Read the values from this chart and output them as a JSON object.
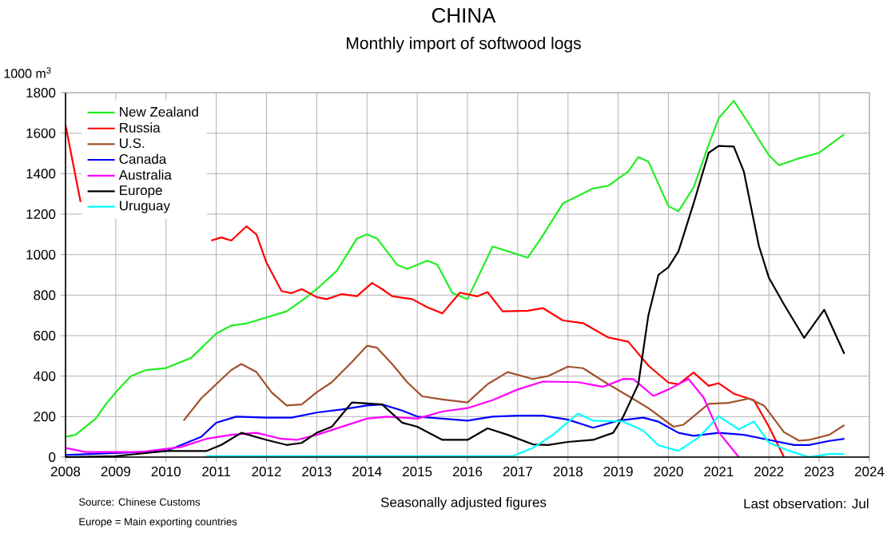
{
  "chart_data": {
    "type": "line",
    "title": "CHINA",
    "subtitle": "Monthly import of softwood logs",
    "ylabel": "1000 m$^{3}$",
    "annotations": [
      "Source: Chinese Customs",
      "Europe = Main exporting countries",
      "Seasonally adjusted figures",
      "Last observation: Jul"
    ],
    "xlim": [
      2008,
      2024
    ],
    "xticks": [
      2008,
      2009,
      2010,
      2011,
      2012,
      2013,
      2014,
      2015,
      2016,
      2017,
      2018,
      2019,
      2020,
      2021,
      2022,
      2023,
      2024
    ],
    "ylim": [
      0,
      1800
    ],
    "yticks": [
      0,
      200,
      400,
      600,
      800,
      1000,
      1200,
      1400,
      1600,
      1800
    ],
    "grid": true,
    "legend": "top left",
    "marker": "none",
    "line_style": "solid",
    "series": [
      {
        "name": "New Zealand",
        "color": "#22ee22",
        "x": [
          2008,
          2008.2,
          2008.6,
          2008.8,
          2009,
          2009.3,
          2009.6,
          2010,
          2010.5,
          2011,
          2011.3,
          2011.6,
          2012,
          2012.4,
          2012.8,
          2013,
          2013.4,
          2013.8,
          2014,
          2014.2,
          2014.6,
          2014.8,
          2015.2,
          2015.4,
          2015.7,
          2016,
          2016.5,
          2016.8,
          2017.2,
          2017.5,
          2017.9,
          2018.5,
          2018.8,
          2019.2,
          2019.4,
          2019.6,
          2020,
          2020.2,
          2020.5,
          2020.8,
          2021,
          2021.3,
          2021.6,
          2022,
          2022.2,
          2022.6,
          2023,
          2023.5
        ],
        "values": [
          100,
          110,
          190,
          260,
          320,
          400,
          430,
          440,
          490,
          610,
          650,
          660,
          690,
          720,
          790,
          830,
          920,
          1080,
          1100,
          1080,
          950,
          930,
          970,
          950,
          810,
          780,
          1040,
          1017,
          985,
          1095,
          1253,
          1327,
          1340,
          1411,
          1482,
          1460,
          1240,
          1214,
          1332,
          1542,
          1674,
          1760,
          1647,
          1490,
          1442,
          1476,
          1503,
          1595
        ]
      },
      {
        "name": "Russia",
        "color": "#ff0000",
        "x": [
          2008,
          2008.3,
          2009,
          2010.9,
          2011.1,
          2011.3,
          2011.6,
          2011.8,
          2012,
          2012.3,
          2012.5,
          2012.7,
          2013,
          2013.2,
          2013.5,
          2013.8,
          2014.1,
          2014.3,
          2014.5,
          2014.9,
          2015.2,
          2015.5,
          2015.85,
          2016.2,
          2016.4,
          2016.7,
          2017.2,
          2017.5,
          2017.9,
          2018.3,
          2018.8,
          2019.2,
          2019.6,
          2020,
          2020.2,
          2020.5,
          2020.8,
          2021,
          2021.3,
          2021.7,
          2022,
          2022.3
        ],
        "values": [
          1640,
          1260,
          null,
          1070,
          1085,
          1070,
          1140,
          1100,
          960,
          820,
          810,
          830,
          790,
          780,
          805,
          795,
          860,
          830,
          795,
          780,
          740,
          710,
          812,
          794,
          815,
          720,
          723,
          736,
          675,
          662,
          591,
          570,
          452,
          368,
          360,
          418,
          352,
          365,
          313,
          281,
          150,
          0
        ]
      },
      {
        "name": "U.S.",
        "color": "#a0522d",
        "x": [
          2010.35,
          2010.7,
          2011,
          2011.3,
          2011.5,
          2011.8,
          2012.1,
          2012.4,
          2012.7,
          2013,
          2013.3,
          2013.7,
          2014,
          2014.2,
          2014.5,
          2014.8,
          2015.1,
          2015.5,
          2016,
          2016.4,
          2016.8,
          2017.3,
          2017.6,
          2018,
          2018.3,
          2018.8,
          2019.2,
          2019.6,
          2020.1,
          2020.3,
          2020.8,
          2021.2,
          2021.6,
          2021.9,
          2022.3,
          2022.6,
          2022.8,
          2023.2,
          2023.5
        ],
        "values": [
          180,
          290,
          360,
          430,
          460,
          420,
          320,
          255,
          260,
          320,
          370,
          470,
          550,
          540,
          460,
          370,
          300,
          285,
          270,
          360,
          420,
          386,
          400,
          447,
          439,
          360,
          302,
          242,
          150,
          160,
          263,
          268,
          289,
          255,
          123,
          81,
          85,
          110,
          158
        ]
      },
      {
        "name": "Canada",
        "color": "#0000ff",
        "x": [
          2008,
          2009,
          2010,
          2010.7,
          2011,
          2011.4,
          2012,
          2012.5,
          2013,
          2013.5,
          2014,
          2014.3,
          2014.7,
          2015,
          2015.5,
          2016,
          2016.5,
          2017,
          2017.5,
          2018,
          2018.5,
          2019,
          2019.5,
          2019.8,
          2020.2,
          2020.5,
          2021,
          2021.5,
          2022,
          2022.5,
          2022.8,
          2023.2,
          2023.5
        ],
        "values": [
          10,
          20,
          30,
          100,
          170,
          200,
          195,
          195,
          220,
          235,
          255,
          260,
          230,
          200,
          190,
          180,
          200,
          205,
          205,
          185,
          145,
          180,
          195,
          175,
          120,
          105,
          120,
          110,
          85,
          60,
          60,
          80,
          90
        ]
      },
      {
        "name": "Australia",
        "color": "#ff00ff",
        "x": [
          2008,
          2008.4,
          2009.5,
          2010.3,
          2010.8,
          2011.3,
          2011.8,
          2012.3,
          2012.6,
          2013,
          2013.5,
          2014,
          2014.4,
          2015,
          2015.5,
          2016,
          2016.5,
          2017,
          2017.5,
          2018.2,
          2018.7,
          2019.1,
          2019.3,
          2019.7,
          2020,
          2020.4,
          2020.7,
          2021,
          2021.4
        ],
        "values": [
          45,
          25,
          25,
          50,
          90,
          110,
          120,
          90,
          85,
          110,
          150,
          190,
          200,
          190,
          225,
          242,
          281,
          334,
          373,
          370,
          347,
          386,
          385,
          302,
          334,
          386,
          294,
          123,
          0
        ]
      },
      {
        "name": "Europe",
        "color": "#000000",
        "x": [
          2008,
          2009,
          2010,
          2010.8,
          2011.1,
          2011.5,
          2012,
          2012.4,
          2012.7,
          2013,
          2013.3,
          2013.7,
          2014,
          2014.3,
          2014.7,
          2015,
          2015.5,
          2016,
          2016.4,
          2016.8,
          2017.3,
          2017.6,
          2018,
          2018.5,
          2018.9,
          2019.1,
          2019.4,
          2019.6,
          2019.8,
          2020,
          2020.2,
          2020.5,
          2020.8,
          2021,
          2021.3,
          2021.5,
          2021.8,
          2022,
          2022.3,
          2022.7,
          2023.1,
          2023.5
        ],
        "values": [
          0,
          5,
          30,
          30,
          60,
          120,
          85,
          60,
          70,
          120,
          150,
          270,
          265,
          260,
          170,
          150,
          85,
          85,
          142,
          110,
          63,
          60,
          75,
          85,
          120,
          200,
          360,
          700,
          900,
          938,
          1017,
          1253,
          1503,
          1537,
          1534,
          1411,
          1043,
          885,
          754,
          589,
          728,
          510
        ]
      },
      {
        "name": "Uruguay",
        "color": "#00ffff",
        "x": [
          2010.8,
          2016,
          2016.9,
          2017.3,
          2017.7,
          2018.2,
          2018.5,
          2019.1,
          2019.5,
          2019.8,
          2020.2,
          2020.6,
          2021,
          2021.4,
          2021.7,
          2022,
          2022.4,
          2022.8,
          2023.2,
          2023.5
        ],
        "values": [
          5,
          5,
          5,
          45,
          110,
          215,
          180,
          176,
          130,
          58,
          31,
          97,
          202,
          137,
          176,
          71,
          31,
          0,
          15,
          15
        ]
      }
    ]
  }
}
